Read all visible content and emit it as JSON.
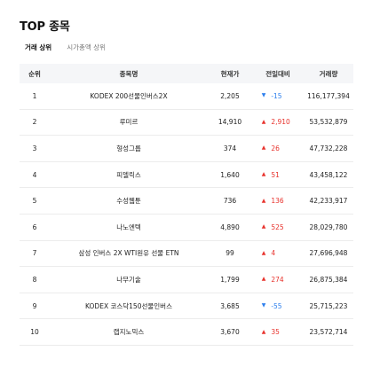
{
  "header": {
    "title": "TOP 종목"
  },
  "tabs": [
    {
      "label": "거래 상위",
      "active": true
    },
    {
      "label": "시가총액 상위",
      "active": false
    }
  ],
  "table": {
    "columns": [
      "순위",
      "종목명",
      "현재가",
      "전일대비",
      "거래량"
    ],
    "rows": [
      {
        "rank": "1",
        "name": "KODEX 200선물인버스2X",
        "price": "2,205",
        "dir": "down",
        "change": "-15",
        "volume": "116,177,394"
      },
      {
        "rank": "2",
        "name": "루미르",
        "price": "14,910",
        "dir": "up",
        "change": "2,910",
        "volume": "53,532,879"
      },
      {
        "rank": "3",
        "name": "형성그룹",
        "price": "374",
        "dir": "up",
        "change": "26",
        "volume": "47,732,228"
      },
      {
        "rank": "4",
        "name": "피델릭스",
        "price": "1,640",
        "dir": "up",
        "change": "51",
        "volume": "43,458,122"
      },
      {
        "rank": "5",
        "name": "수성웹툰",
        "price": "736",
        "dir": "up",
        "change": "136",
        "volume": "42,233,917"
      },
      {
        "rank": "6",
        "name": "나노엔텍",
        "price": "4,890",
        "dir": "up",
        "change": "525",
        "volume": "28,029,780"
      },
      {
        "rank": "7",
        "name": "삼성 인버스 2X WTI원유 선물 ETN",
        "price": "99",
        "dir": "up",
        "change": "4",
        "volume": "27,696,948"
      },
      {
        "rank": "8",
        "name": "나무기술",
        "price": "1,799",
        "dir": "up",
        "change": "274",
        "volume": "26,875,384"
      },
      {
        "rank": "9",
        "name": "KODEX 코스닥150선물인버스",
        "price": "3,685",
        "dir": "down",
        "change": "-55",
        "volume": "25,715,223"
      },
      {
        "rank": "10",
        "name": "랩지노믹스",
        "price": "3,670",
        "dir": "up",
        "change": "35",
        "volume": "23,572,714"
      }
    ]
  },
  "colors": {
    "up": "#e8332d",
    "down": "#2f80ed",
    "header_bg": "#f5f6f8"
  },
  "icons": {
    "up": "triangle-up-icon",
    "down": "triangle-down-icon"
  }
}
